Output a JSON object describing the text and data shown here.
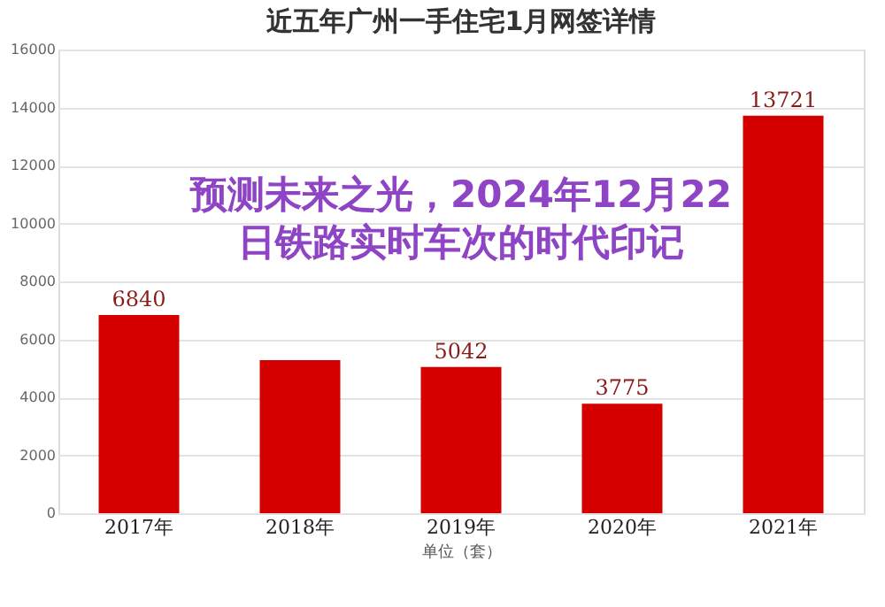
{
  "chart_data": {
    "type": "bar",
    "title": "近五年广州一手住宅1月网签详情",
    "xlabel": "单位（套）",
    "categories": [
      "2017年",
      "2018年",
      "2019年",
      "2020年",
      "2021年"
    ],
    "values": [
      6840,
      5280,
      5042,
      3775,
      13721
    ],
    "value_labels": [
      "6840",
      null,
      "5042",
      "3775",
      "13721"
    ],
    "color": "#d40000",
    "ylim": [
      0,
      16000
    ],
    "yticks": [
      0,
      2000,
      4000,
      6000,
      8000,
      10000,
      12000,
      14000,
      16000
    ],
    "grid": "y",
    "annotations": [
      "预测未来之光，2024年12月22日铁路实时车次的时代印记"
    ]
  }
}
